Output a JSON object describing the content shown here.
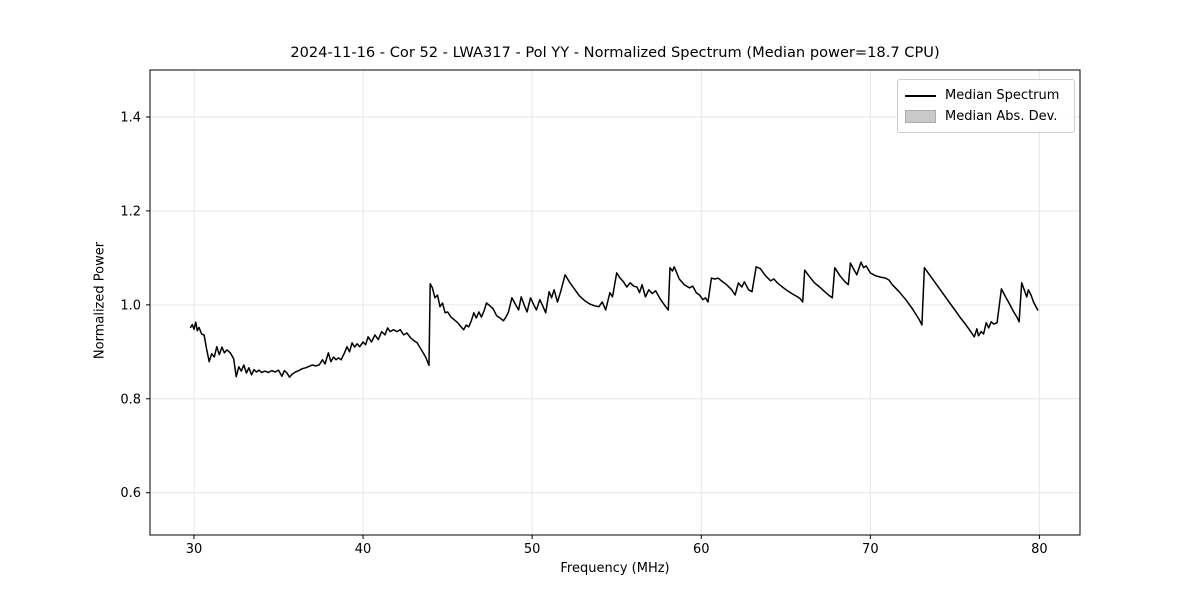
{
  "chart_data": {
    "type": "line",
    "title": "2024-11-16 - Cor 52 - LWA317 - Pol YY - Normalized Spectrum (Median power=18.7 CPU)",
    "xlabel": "Frequency (MHz)",
    "ylabel": "Normalized Power",
    "xlim": [
      27.4,
      82.4
    ],
    "ylim": [
      0.51,
      1.5
    ],
    "xticks": [
      30,
      40,
      50,
      60,
      70,
      80
    ],
    "xtick_labels": [
      "30",
      "40",
      "50",
      "60",
      "70",
      "80"
    ],
    "yticks": [
      0.6,
      0.8,
      1.0,
      1.2,
      1.4
    ],
    "ytick_labels": [
      "0.6",
      "0.8",
      "1.0",
      "1.2",
      "1.4"
    ],
    "grid": true,
    "legend": {
      "position": "upper right",
      "entries": [
        {
          "label": "Median Spectrum",
          "type": "line",
          "color": "#000000"
        },
        {
          "label": "Median Abs. Dev.",
          "type": "patch",
          "color": "#c9c9c9",
          "edge": "#adadad"
        }
      ]
    },
    "series": [
      {
        "name": "Median Spectrum",
        "color": "#000000",
        "linewidth": 1.5,
        "points": [
          [
            29.8,
            0.952
          ],
          [
            29.9,
            0.958
          ],
          [
            30.0,
            0.948
          ],
          [
            30.1,
            0.963
          ],
          [
            30.2,
            0.945
          ],
          [
            30.3,
            0.952
          ],
          [
            30.45,
            0.938
          ],
          [
            30.6,
            0.936
          ],
          [
            30.75,
            0.906
          ],
          [
            30.9,
            0.879
          ],
          [
            31.05,
            0.896
          ],
          [
            31.2,
            0.889
          ],
          [
            31.35,
            0.911
          ],
          [
            31.5,
            0.894
          ],
          [
            31.65,
            0.91
          ],
          [
            31.8,
            0.898
          ],
          [
            31.95,
            0.904
          ],
          [
            32.15,
            0.898
          ],
          [
            32.35,
            0.885
          ],
          [
            32.5,
            0.847
          ],
          [
            32.65,
            0.868
          ],
          [
            32.8,
            0.859
          ],
          [
            32.95,
            0.872
          ],
          [
            33.1,
            0.855
          ],
          [
            33.25,
            0.866
          ],
          [
            33.4,
            0.851
          ],
          [
            33.55,
            0.862
          ],
          [
            33.7,
            0.857
          ],
          [
            33.85,
            0.861
          ],
          [
            34.0,
            0.856
          ],
          [
            34.2,
            0.859
          ],
          [
            34.4,
            0.856
          ],
          [
            34.6,
            0.86
          ],
          [
            34.8,
            0.857
          ],
          [
            35.0,
            0.861
          ],
          [
            35.2,
            0.848
          ],
          [
            35.35,
            0.86
          ],
          [
            35.5,
            0.855
          ],
          [
            35.65,
            0.846
          ],
          [
            35.8,
            0.852
          ],
          [
            36.0,
            0.857
          ],
          [
            36.2,
            0.86
          ],
          [
            36.4,
            0.864
          ],
          [
            36.6,
            0.866
          ],
          [
            36.8,
            0.869
          ],
          [
            37.0,
            0.872
          ],
          [
            37.2,
            0.87
          ],
          [
            37.4,
            0.872
          ],
          [
            37.6,
            0.883
          ],
          [
            37.75,
            0.874
          ],
          [
            37.95,
            0.898
          ],
          [
            38.1,
            0.879
          ],
          [
            38.25,
            0.889
          ],
          [
            38.4,
            0.883
          ],
          [
            38.55,
            0.887
          ],
          [
            38.7,
            0.883
          ],
          [
            38.9,
            0.898
          ],
          [
            39.05,
            0.911
          ],
          [
            39.2,
            0.9
          ],
          [
            39.35,
            0.919
          ],
          [
            39.5,
            0.91
          ],
          [
            39.65,
            0.917
          ],
          [
            39.8,
            0.911
          ],
          [
            40.0,
            0.921
          ],
          [
            40.15,
            0.915
          ],
          [
            40.3,
            0.932
          ],
          [
            40.5,
            0.921
          ],
          [
            40.7,
            0.936
          ],
          [
            40.9,
            0.926
          ],
          [
            41.1,
            0.943
          ],
          [
            41.3,
            0.936
          ],
          [
            41.45,
            0.951
          ],
          [
            41.6,
            0.943
          ],
          [
            41.8,
            0.947
          ],
          [
            42.0,
            0.943
          ],
          [
            42.2,
            0.947
          ],
          [
            42.4,
            0.936
          ],
          [
            42.6,
            0.94
          ],
          [
            42.8,
            0.93
          ],
          [
            43.0,
            0.924
          ],
          [
            43.2,
            0.919
          ],
          [
            43.45,
            0.904
          ],
          [
            43.7,
            0.889
          ],
          [
            43.9,
            0.871
          ],
          [
            43.97,
            1.045
          ],
          [
            44.1,
            1.036
          ],
          [
            44.25,
            1.015
          ],
          [
            44.4,
            1.021
          ],
          [
            44.55,
            0.996
          ],
          [
            44.7,
            1.004
          ],
          [
            44.85,
            0.983
          ],
          [
            45.0,
            0.985
          ],
          [
            45.2,
            0.974
          ],
          [
            45.4,
            0.968
          ],
          [
            45.6,
            0.962
          ],
          [
            45.8,
            0.953
          ],
          [
            45.95,
            0.947
          ],
          [
            46.1,
            0.957
          ],
          [
            46.25,
            0.953
          ],
          [
            46.4,
            0.966
          ],
          [
            46.55,
            0.983
          ],
          [
            46.7,
            0.972
          ],
          [
            46.85,
            0.985
          ],
          [
            47.0,
            0.974
          ],
          [
            47.15,
            0.987
          ],
          [
            47.3,
            1.004
          ],
          [
            47.5,
            0.998
          ],
          [
            47.7,
            0.991
          ],
          [
            47.9,
            0.977
          ],
          [
            48.1,
            0.972
          ],
          [
            48.3,
            0.966
          ],
          [
            48.45,
            0.974
          ],
          [
            48.6,
            0.985
          ],
          [
            48.8,
            1.015
          ],
          [
            49.0,
            1.002
          ],
          [
            49.2,
            0.989
          ],
          [
            49.35,
            1.017
          ],
          [
            49.55,
            0.998
          ],
          [
            49.7,
            0.985
          ],
          [
            49.9,
            1.015
          ],
          [
            50.1,
            1.0
          ],
          [
            50.25,
            0.989
          ],
          [
            50.45,
            1.011
          ],
          [
            50.65,
            0.996
          ],
          [
            50.8,
            0.983
          ],
          [
            51.0,
            1.028
          ],
          [
            51.15,
            1.015
          ],
          [
            51.3,
            1.032
          ],
          [
            51.5,
            1.006
          ],
          [
            51.7,
            1.03
          ],
          [
            51.95,
            1.064
          ],
          [
            52.2,
            1.049
          ],
          [
            52.5,
            1.034
          ],
          [
            52.8,
            1.019
          ],
          [
            53.1,
            1.009
          ],
          [
            53.4,
            1.002
          ],
          [
            53.7,
            0.998
          ],
          [
            53.95,
            0.996
          ],
          [
            54.15,
            1.006
          ],
          [
            54.35,
            0.989
          ],
          [
            54.6,
            1.026
          ],
          [
            54.75,
            1.017
          ],
          [
            55.0,
            1.068
          ],
          [
            55.2,
            1.057
          ],
          [
            55.4,
            1.049
          ],
          [
            55.6,
            1.038
          ],
          [
            55.8,
            1.047
          ],
          [
            56.0,
            1.04
          ],
          [
            56.2,
            1.038
          ],
          [
            56.35,
            1.026
          ],
          [
            56.5,
            1.043
          ],
          [
            56.7,
            1.017
          ],
          [
            56.9,
            1.032
          ],
          [
            57.1,
            1.024
          ],
          [
            57.3,
            1.03
          ],
          [
            57.6,
            1.011
          ],
          [
            57.9,
            0.996
          ],
          [
            58.05,
            0.989
          ],
          [
            58.15,
            1.079
          ],
          [
            58.3,
            1.072
          ],
          [
            58.4,
            1.081
          ],
          [
            58.7,
            1.055
          ],
          [
            59.0,
            1.043
          ],
          [
            59.3,
            1.036
          ],
          [
            59.5,
            1.04
          ],
          [
            59.7,
            1.026
          ],
          [
            59.9,
            1.021
          ],
          [
            60.1,
            1.011
          ],
          [
            60.25,
            1.015
          ],
          [
            60.4,
            1.006
          ],
          [
            60.6,
            1.057
          ],
          [
            60.8,
            1.055
          ],
          [
            61.0,
            1.057
          ],
          [
            61.2,
            1.051
          ],
          [
            61.5,
            1.043
          ],
          [
            61.8,
            1.032
          ],
          [
            62.0,
            1.021
          ],
          [
            62.2,
            1.047
          ],
          [
            62.4,
            1.038
          ],
          [
            62.55,
            1.049
          ],
          [
            62.8,
            1.032
          ],
          [
            63.0,
            1.028
          ],
          [
            63.25,
            1.081
          ],
          [
            63.5,
            1.077
          ],
          [
            63.8,
            1.062
          ],
          [
            64.1,
            1.051
          ],
          [
            64.3,
            1.055
          ],
          [
            64.5,
            1.047
          ],
          [
            64.8,
            1.038
          ],
          [
            65.1,
            1.03
          ],
          [
            65.4,
            1.023
          ],
          [
            65.7,
            1.017
          ],
          [
            65.85,
            1.013
          ],
          [
            66.0,
            1.006
          ],
          [
            66.12,
            1.074
          ],
          [
            66.4,
            1.06
          ],
          [
            66.7,
            1.047
          ],
          [
            67.0,
            1.038
          ],
          [
            67.3,
            1.028
          ],
          [
            67.6,
            1.019
          ],
          [
            67.75,
            1.015
          ],
          [
            67.9,
            1.079
          ],
          [
            68.2,
            1.062
          ],
          [
            68.5,
            1.049
          ],
          [
            68.7,
            1.043
          ],
          [
            68.82,
            1.089
          ],
          [
            69.0,
            1.077
          ],
          [
            69.2,
            1.064
          ],
          [
            69.45,
            1.091
          ],
          [
            69.6,
            1.079
          ],
          [
            69.75,
            1.083
          ],
          [
            70.0,
            1.068
          ],
          [
            70.3,
            1.062
          ],
          [
            70.6,
            1.059
          ],
          [
            70.9,
            1.057
          ],
          [
            71.1,
            1.053
          ],
          [
            71.3,
            1.043
          ],
          [
            71.7,
            1.028
          ],
          [
            72.1,
            1.011
          ],
          [
            72.5,
            0.991
          ],
          [
            72.9,
            0.968
          ],
          [
            73.05,
            0.957
          ],
          [
            73.2,
            1.079
          ],
          [
            73.5,
            1.064
          ],
          [
            73.8,
            1.049
          ],
          [
            74.1,
            1.034
          ],
          [
            74.4,
            1.019
          ],
          [
            74.7,
            1.004
          ],
          [
            75.0,
            0.989
          ],
          [
            75.3,
            0.974
          ],
          [
            75.6,
            0.96
          ],
          [
            75.9,
            0.945
          ],
          [
            76.15,
            0.932
          ],
          [
            76.3,
            0.949
          ],
          [
            76.4,
            0.934
          ],
          [
            76.55,
            0.943
          ],
          [
            76.7,
            0.938
          ],
          [
            76.85,
            0.962
          ],
          [
            77.0,
            0.951
          ],
          [
            77.15,
            0.964
          ],
          [
            77.3,
            0.959
          ],
          [
            77.5,
            0.962
          ],
          [
            77.75,
            1.034
          ],
          [
            78.0,
            1.017
          ],
          [
            78.2,
            1.004
          ],
          [
            78.45,
            0.987
          ],
          [
            78.7,
            0.972
          ],
          [
            78.8,
            0.964
          ],
          [
            78.95,
            1.047
          ],
          [
            79.1,
            1.032
          ],
          [
            79.25,
            1.017
          ],
          [
            79.35,
            1.032
          ],
          [
            79.5,
            1.021
          ],
          [
            79.65,
            1.006
          ],
          [
            79.9,
            0.989
          ]
        ]
      }
    ],
    "colors": {
      "line": "#000000",
      "grid": "#e6e6e6",
      "axes": "#000000",
      "background": "#ffffff",
      "legend_border": "#cccccc"
    }
  }
}
